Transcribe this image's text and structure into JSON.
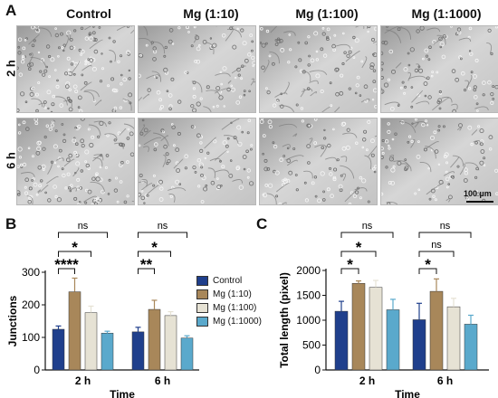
{
  "panel_a": {
    "letter": "A",
    "columns": [
      "Control",
      "Mg (1:10)",
      "Mg (1:100)",
      "Mg (1:1000)"
    ],
    "rows": [
      "2 h",
      "6 h"
    ],
    "scale_bar": "100 µm"
  },
  "chart_data": [
    {
      "panel": "B",
      "type": "bar",
      "categories": [
        "2 h",
        "6 h"
      ],
      "xlabel": "Time",
      "ylabel": "Junctions",
      "ylim": [
        0,
        300
      ],
      "yticks": [
        0,
        100,
        200,
        300
      ],
      "series": [
        {
          "name": "Control",
          "color": "#1f3f8c",
          "values": [
            125,
            117
          ],
          "errors": [
            10,
            14
          ]
        },
        {
          "name": "Mg (1:10)",
          "color": "#a8875a",
          "values": [
            240,
            186
          ],
          "errors": [
            42,
            28
          ]
        },
        {
          "name": "Mg (1:100)",
          "color": "#e6e2d4",
          "values": [
            176,
            167
          ],
          "errors": [
            20,
            12
          ]
        },
        {
          "name": "Mg (1:1000)",
          "color": "#5aa9cc",
          "values": [
            113,
            98
          ],
          "errors": [
            6,
            7
          ]
        }
      ],
      "significance": [
        {
          "group": "2 h",
          "comparison": [
            "Control",
            "Mg (1:1000)"
          ],
          "label": "ns"
        },
        {
          "group": "2 h",
          "comparison": [
            "Control",
            "Mg (1:100)"
          ],
          "label": "*"
        },
        {
          "group": "2 h",
          "comparison": [
            "Control",
            "Mg (1:10)"
          ],
          "label": "****"
        },
        {
          "group": "6 h",
          "comparison": [
            "Control",
            "Mg (1:1000)"
          ],
          "label": "ns"
        },
        {
          "group": "6 h",
          "comparison": [
            "Control",
            "Mg (1:100)"
          ],
          "label": "*"
        },
        {
          "group": "6 h",
          "comparison": [
            "Control",
            "Mg (1:10)"
          ],
          "label": "**"
        }
      ],
      "legend": "right"
    },
    {
      "panel": "C",
      "type": "bar",
      "categories": [
        "2 h",
        "6 h"
      ],
      "xlabel": "Time",
      "ylabel": "Total length (pixel)",
      "ylim": [
        0,
        2000
      ],
      "yticks": [
        0,
        500,
        1000,
        1500,
        2000
      ],
      "series": [
        {
          "name": "Control",
          "color": "#1f3f8c",
          "values": [
            1180,
            1010
          ],
          "errors": [
            200,
            330
          ]
        },
        {
          "name": "Mg (1:10)",
          "color": "#a8875a",
          "values": [
            1740,
            1580
          ],
          "errors": [
            50,
            250
          ]
        },
        {
          "name": "Mg (1:100)",
          "color": "#e6e2d4",
          "values": [
            1660,
            1270
          ],
          "errors": [
            140,
            170
          ]
        },
        {
          "name": "Mg (1:1000)",
          "color": "#5aa9cc",
          "values": [
            1210,
            920
          ],
          "errors": [
            210,
            180
          ]
        }
      ],
      "significance": [
        {
          "group": "2 h",
          "comparison": [
            "Control",
            "Mg (1:1000)"
          ],
          "label": "ns"
        },
        {
          "group": "2 h",
          "comparison": [
            "Control",
            "Mg (1:100)"
          ],
          "label": "*"
        },
        {
          "group": "2 h",
          "comparison": [
            "Control",
            "Mg (1:10)"
          ],
          "label": "*"
        },
        {
          "group": "6 h",
          "comparison": [
            "Control",
            "Mg (1:1000)"
          ],
          "label": "ns"
        },
        {
          "group": "6 h",
          "comparison": [
            "Control",
            "Mg (1:100)"
          ],
          "label": "ns"
        },
        {
          "group": "6 h",
          "comparison": [
            "Control",
            "Mg (1:10)"
          ],
          "label": "*"
        }
      ]
    }
  ]
}
